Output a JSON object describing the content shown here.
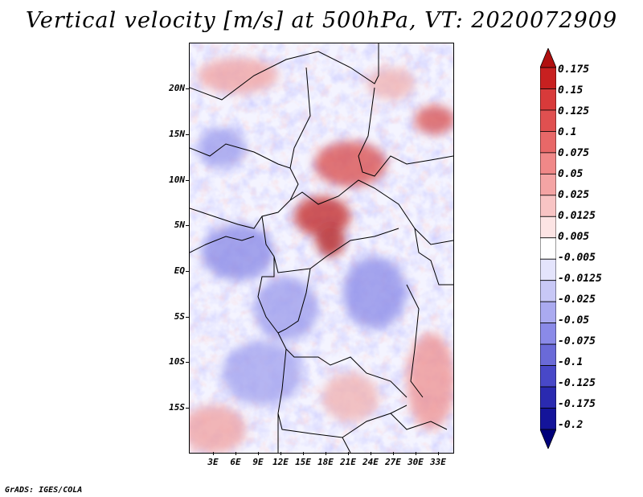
{
  "title": "Vertical velocity [m/s] at 500hPa, VT: 2020072909",
  "credit": "GrADS: IGES/COLA",
  "map": {
    "y_labels": [
      "20N",
      "15N",
      "10N",
      "5N",
      "EQ",
      "5S",
      "10S",
      "15S"
    ],
    "x_labels": [
      "3E",
      "6E",
      "9E",
      "12E",
      "15E",
      "18E",
      "21E",
      "24E",
      "27E",
      "30E",
      "33E"
    ]
  },
  "colorbar": {
    "labels": [
      "0.175",
      "0.15",
      "0.125",
      "0.1",
      "0.075",
      "0.05",
      "0.025",
      "0.0125",
      "0.005",
      "-0.005",
      "-0.0125",
      "-0.025",
      "-0.05",
      "-0.075",
      "-0.1",
      "-0.125",
      "-0.175",
      "-0.2"
    ],
    "colors": [
      "#b01010",
      "#c82020",
      "#d83a3a",
      "#e05050",
      "#e86868",
      "#f08888",
      "#f4a4a4",
      "#f8c4c4",
      "#fce4e4",
      "#ffffff",
      "#e4e4fc",
      "#c8c8f6",
      "#aaaaf0",
      "#8a8ae8",
      "#6a6ad8",
      "#4848c8",
      "#2a2ab0",
      "#14149a",
      "#00007a"
    ]
  }
}
